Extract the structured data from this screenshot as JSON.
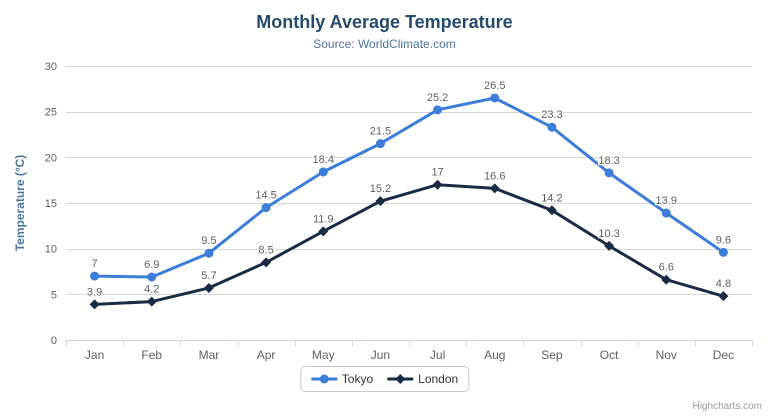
{
  "header": {
    "title": "Monthly Average Temperature",
    "subtitle": "Source: WorldClimate.com"
  },
  "credits": "Highcharts.com",
  "chart_data": {
    "type": "line",
    "title": "Monthly Average Temperature",
    "subtitle": "Source: WorldClimate.com",
    "categories": [
      "Jan",
      "Feb",
      "Mar",
      "Apr",
      "May",
      "Jun",
      "Jul",
      "Aug",
      "Sep",
      "Oct",
      "Nov",
      "Dec"
    ],
    "series": [
      {
        "name": "Tokyo",
        "color": "#3b7dd8",
        "marker": "circle",
        "values": [
          7,
          6.9,
          9.5,
          14.5,
          18.4,
          21.5,
          25.2,
          26.5,
          23.3,
          18.3,
          13.9,
          9.6
        ]
      },
      {
        "name": "London",
        "color": "#1a2b45",
        "marker": "diamond",
        "values": [
          3.9,
          4.2,
          5.7,
          8.5,
          11.9,
          15.2,
          17,
          16.6,
          14.2,
          10.3,
          6.6,
          4.8
        ]
      }
    ],
    "xlabel": "",
    "ylabel": "Temperature (°C)",
    "ylim": [
      0,
      30
    ],
    "yticks": [
      0,
      5,
      10,
      15,
      20,
      25,
      30
    ],
    "grid": true,
    "legend_position": "bottom",
    "data_labels": true
  },
  "style": {
    "title_color": "#274b6d",
    "subtitle_color": "#4d759e",
    "axis_title_color": "#4d759e",
    "label_color": "#606060",
    "grid_color": "#d6d6d6",
    "axis_line_color": "#ccd6eb",
    "legend_text_color": "#333333",
    "credits_color": "#999999",
    "menu_icon_color": "#666666"
  }
}
